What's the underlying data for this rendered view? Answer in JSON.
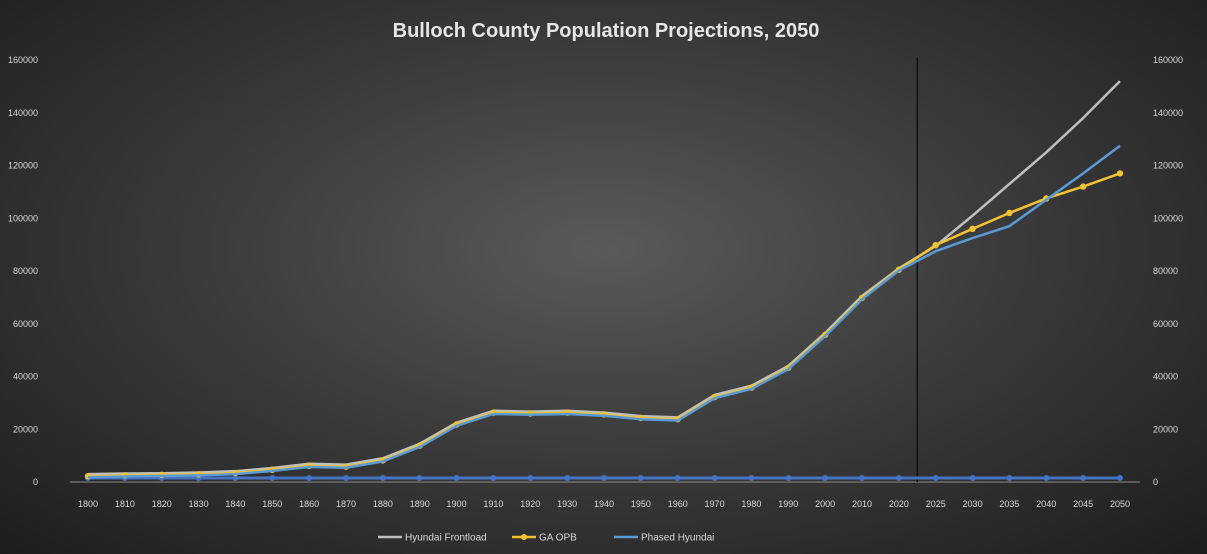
{
  "chart_data": {
    "type": "line",
    "title": "Bulloch County Population Projections, 2050",
    "xlabel": "",
    "ylabel": "",
    "ylim": [
      0,
      160000
    ],
    "y_ticks": [
      "0",
      "20000",
      "40000",
      "60000",
      "80000",
      "100000",
      "120000",
      "140000",
      "160000"
    ],
    "categories": [
      "1800",
      "1810",
      "1820",
      "1830",
      "1840",
      "1850",
      "1860",
      "1870",
      "1880",
      "1890",
      "1900",
      "1910",
      "1920",
      "1930",
      "1940",
      "1950",
      "1960",
      "1970",
      "1980",
      "1990",
      "2000",
      "2010",
      "2020",
      "2025",
      "2030",
      "2035",
      "2040",
      "2045",
      "2050"
    ],
    "divider_after": "2020",
    "grid": false,
    "legend": "bottom",
    "series": [
      {
        "name": "Hyundai Frontload",
        "color": "#bfbfbf",
        "markers": false,
        "values": [
          3000,
          3200,
          3300,
          3600,
          4100,
          5300,
          6900,
          6600,
          9000,
          14500,
          22500,
          27000,
          26700,
          27000,
          26300,
          25000,
          24500,
          33000,
          36500,
          44000,
          56500,
          70500,
          81000,
          89500,
          101000,
          113000,
          125000,
          138000,
          152000
        ]
      },
      {
        "name": "GA OPB",
        "color": "#f2c230",
        "markers": true,
        "values": [
          2200,
          2500,
          2700,
          2900,
          3400,
          4600,
          6100,
          5800,
          8200,
          13800,
          21800,
          26300,
          26000,
          26300,
          25600,
          24300,
          23800,
          32200,
          35800,
          43300,
          55800,
          69800,
          80500,
          89800,
          96000,
          102000,
          107500,
          112000,
          117000
        ]
      },
      {
        "name": "Phased Hyundai",
        "color": "#5b9bd5",
        "markers": false,
        "values": [
          1800,
          2100,
          2300,
          2500,
          3000,
          4200,
          5700,
          5400,
          7800,
          13300,
          21300,
          25800,
          25500,
          25800,
          25100,
          23800,
          23300,
          31800,
          35300,
          42800,
          55300,
          69300,
          80200,
          87500,
          92500,
          97000,
          107000,
          117000,
          127500
        ]
      }
    ],
    "baseline_series": {
      "color": "#4472c4",
      "values": [
        1500,
        1500,
        1500,
        1500,
        1500,
        1500,
        1500,
        1500,
        1500,
        1500,
        1500,
        1500,
        1500,
        1500,
        1500,
        1500,
        1500,
        1500,
        1500,
        1500,
        1500,
        1500,
        1500,
        1500,
        1500,
        1500,
        1500,
        1500,
        1500
      ]
    }
  }
}
